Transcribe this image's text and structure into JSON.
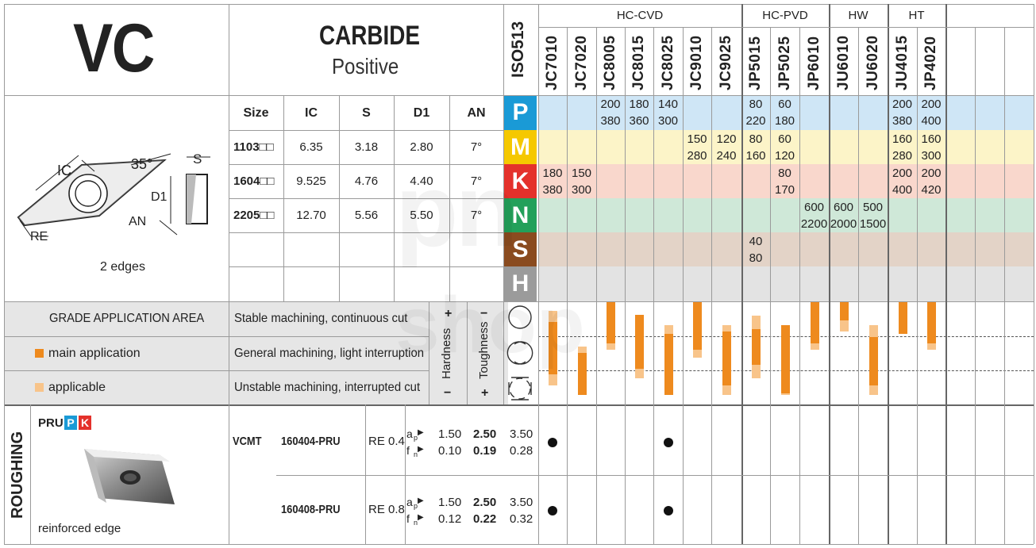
{
  "header": {
    "code": "VC",
    "material": "CARBIDE",
    "geometry": "Positive",
    "iso_label": "ISO513",
    "groups": [
      {
        "label": "HC-CVD"
      },
      {
        "label": "HC-PVD"
      },
      {
        "label": "HW"
      },
      {
        "label": "HT"
      }
    ],
    "grades": [
      "JC7010",
      "JC7020",
      "JC8005",
      "JC8015",
      "JC8025",
      "JC9010",
      "JC9025",
      "JP5015",
      "JP5025",
      "JP6010",
      "JU6010",
      "JU6020",
      "JU4015",
      "JP4020"
    ]
  },
  "drawing": {
    "labels": {
      "ic": "IC",
      "angle": "35°",
      "s": "S",
      "d1": "D1",
      "an": "AN",
      "re": "RE"
    },
    "edges": "2 edges"
  },
  "size_table": {
    "headers": [
      "Size",
      "IC",
      "S",
      "D1",
      "AN"
    ],
    "rows": [
      [
        "1103□□",
        "6.35",
        "3.18",
        "2.80",
        "7°"
      ],
      [
        "1604□□",
        "9.525",
        "4.76",
        "4.40",
        "7°"
      ],
      [
        "2205□□",
        "12.70",
        "5.56",
        "5.50",
        "7°"
      ]
    ]
  },
  "iso_groups": [
    {
      "letter": "P",
      "color": "#1a9ad6",
      "row_color": "#cfe6f6"
    },
    {
      "letter": "M",
      "color": "#f5c800",
      "row_color": "#fcf4c8"
    },
    {
      "letter": "K",
      "color": "#e4312b",
      "row_color": "#f9d7cc"
    },
    {
      "letter": "N",
      "color": "#23a05a",
      "row_color": "#cfe8d8"
    },
    {
      "letter": "S",
      "color": "#8a4b1f",
      "row_color": "#e3d3c7"
    },
    {
      "letter": "H",
      "color": "#9b9b9b",
      "row_color": "#e3e3e3"
    }
  ],
  "speeds": [
    {
      "row": 0,
      "grade": 2,
      "top": "200",
      "bottom": "380"
    },
    {
      "row": 0,
      "grade": 3,
      "top": "180",
      "bottom": "360"
    },
    {
      "row": 0,
      "grade": 4,
      "top": "140",
      "bottom": "300"
    },
    {
      "row": 0,
      "grade": 7,
      "top": "80",
      "bottom": "220"
    },
    {
      "row": 0,
      "grade": 8,
      "top": "60",
      "bottom": "180"
    },
    {
      "row": 0,
      "grade": 12,
      "top": "200",
      "bottom": "380"
    },
    {
      "row": 0,
      "grade": 13,
      "top": "200",
      "bottom": "400"
    },
    {
      "row": 1,
      "grade": 5,
      "top": "150",
      "bottom": "280"
    },
    {
      "row": 1,
      "grade": 6,
      "top": "120",
      "bottom": "240"
    },
    {
      "row": 1,
      "grade": 7,
      "top": "80",
      "bottom": "160"
    },
    {
      "row": 1,
      "grade": 8,
      "top": "60",
      "bottom": "120"
    },
    {
      "row": 1,
      "grade": 12,
      "top": "160",
      "bottom": "280"
    },
    {
      "row": 1,
      "grade": 13,
      "top": "160",
      "bottom": "300"
    },
    {
      "row": 2,
      "grade": 0,
      "top": "180",
      "bottom": "380"
    },
    {
      "row": 2,
      "grade": 1,
      "top": "150",
      "bottom": "300"
    },
    {
      "row": 2,
      "grade": 8,
      "top": "80",
      "bottom": "170"
    },
    {
      "row": 2,
      "grade": 12,
      "top": "200",
      "bottom": "400"
    },
    {
      "row": 2,
      "grade": 13,
      "top": "200",
      "bottom": "420"
    },
    {
      "row": 3,
      "grade": 9,
      "top": "600",
      "bottom": "2200"
    },
    {
      "row": 3,
      "grade": 10,
      "top": "600",
      "bottom": "2000"
    },
    {
      "row": 3,
      "grade": 11,
      "top": "500",
      "bottom": "1500"
    },
    {
      "row": 4,
      "grade": 7,
      "top": "40",
      "bottom": "80"
    }
  ],
  "application": {
    "title": "GRADE APPLICATION AREA",
    "main": "main application",
    "applicable": "applicable",
    "main_color": "#ee8a1e",
    "applicable_color": "#f8c48a",
    "rows": [
      "Stable machining, continuous cut",
      "General machining, light interruption",
      "Unstable machining, interrupted cut"
    ],
    "hardness": "Hardness",
    "toughness": "Toughness",
    "plus": "+",
    "minus": "−",
    "bars": [
      {
        "grade": 0,
        "main": [
          0.22,
          0.78
        ],
        "applicable": [
          0.1,
          0.9
        ]
      },
      {
        "grade": 1,
        "main": [
          0.55,
          1.0
        ],
        "applicable": [
          0.48,
          1.0
        ]
      },
      {
        "grade": 2,
        "main": [
          0.0,
          0.45
        ],
        "applicable": [
          0.0,
          0.52
        ]
      },
      {
        "grade": 3,
        "main": [
          0.14,
          0.72
        ],
        "applicable": [
          0.14,
          0.82
        ]
      },
      {
        "grade": 4,
        "main": [
          0.35,
          1.0
        ],
        "applicable": [
          0.25,
          1.0
        ]
      },
      {
        "grade": 5,
        "main": [
          0.0,
          0.52
        ],
        "applicable": [
          0.0,
          0.6
        ]
      },
      {
        "grade": 6,
        "main": [
          0.32,
          0.9
        ],
        "applicable": [
          0.25,
          1.0
        ]
      },
      {
        "grade": 7,
        "main": [
          0.3,
          0.68
        ],
        "applicable": [
          0.15,
          0.82
        ]
      },
      {
        "grade": 8,
        "main": [
          0.25,
          0.98
        ],
        "applicable": [
          0.25,
          1.0
        ]
      },
      {
        "grade": 9,
        "main": [
          0.0,
          0.45
        ],
        "applicable": [
          0.0,
          0.52
        ]
      },
      {
        "grade": 10,
        "main": [
          0.0,
          0.2
        ],
        "applicable": [
          0.0,
          0.32
        ]
      },
      {
        "grade": 11,
        "main": [
          0.38,
          0.9
        ],
        "applicable": [
          0.25,
          1.0
        ]
      },
      {
        "grade": 12,
        "main": [
          0.0,
          0.35
        ],
        "applicable": [
          0.0,
          0.35
        ]
      },
      {
        "grade": 13,
        "main": [
          0.0,
          0.45
        ],
        "applicable": [
          0.0,
          0.52
        ]
      }
    ]
  },
  "roughing": {
    "section": "ROUGHING",
    "chipbreaker": "PRU",
    "groups": [
      "P",
      "K"
    ],
    "note": "reinforced edge",
    "designation": "VCMT",
    "rows": [
      {
        "code": "160404-PRU",
        "re": "RE 0.4",
        "ap_label": "a",
        "ap_sub": "p",
        "fn_label": "f",
        "fn_sub": "n",
        "ap": [
          "1.50",
          "2.50",
          "3.50"
        ],
        "fn": [
          "0.10",
          "0.19",
          "0.28"
        ],
        "dots": [
          0,
          4
        ]
      },
      {
        "code": "160408-PRU",
        "re": "RE 0.8",
        "ap_label": "a",
        "ap_sub": "p",
        "fn_label": "f",
        "fn_sub": "n",
        "ap": [
          "1.50",
          "2.50",
          "3.50"
        ],
        "fn": [
          "0.12",
          "0.22",
          "0.32"
        ],
        "dots": [
          0,
          4
        ]
      }
    ]
  }
}
